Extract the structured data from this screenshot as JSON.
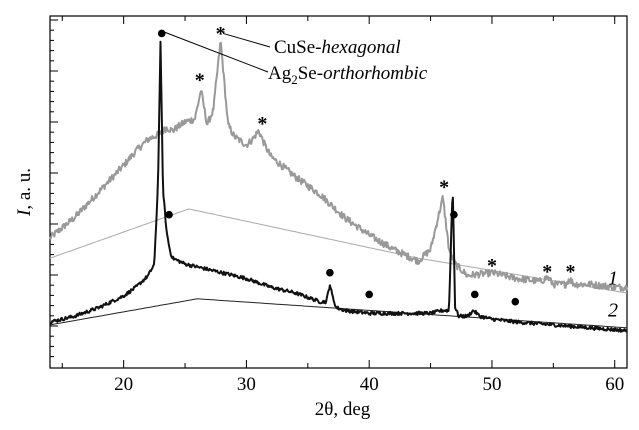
{
  "chart_data": {
    "type": "line",
    "xlabel": "2θ, deg",
    "ylabel": "I, a. u.",
    "xlim": [
      14,
      61
    ],
    "ylim": [
      0,
      1
    ],
    "x_ticks": [
      20,
      30,
      40,
      50,
      60
    ],
    "x_tick_labels": [
      "20",
      "30",
      "40",
      "50",
      "60"
    ],
    "y_ticks_hidden": true,
    "grid": false,
    "colors": {
      "series1": "#999999",
      "series2": "#111111",
      "baseline1": "#aaaaaa",
      "baseline2": "#222222"
    },
    "series": [
      {
        "name": "1",
        "color": "#999999",
        "x": [
          14,
          16,
          18,
          20,
          21,
          22,
          22.5,
          23,
          23.5,
          24,
          25,
          25.8,
          26.3,
          26.8,
          27.3,
          27.9,
          28.5,
          29,
          30,
          30.5,
          31,
          31.5,
          32,
          34,
          36,
          38,
          40,
          42,
          44,
          45,
          45.5,
          46,
          46.5,
          47,
          48,
          50,
          52,
          54,
          54.5,
          55,
          56,
          56.3,
          56.7,
          58,
          60,
          61
        ],
        "y": [
          0.29,
          0.36,
          0.45,
          0.54,
          0.59,
          0.63,
          0.64,
          0.65,
          0.67,
          0.66,
          0.69,
          0.7,
          0.8,
          0.68,
          0.73,
          0.97,
          0.68,
          0.64,
          0.61,
          0.63,
          0.66,
          0.61,
          0.57,
          0.5,
          0.44,
          0.36,
          0.3,
          0.25,
          0.21,
          0.25,
          0.34,
          0.43,
          0.25,
          0.2,
          0.16,
          0.17,
          0.15,
          0.14,
          0.155,
          0.13,
          0.13,
          0.15,
          0.13,
          0.13,
          0.12,
          0.12
        ]
      },
      {
        "name": "2",
        "color": "#111111",
        "x": [
          14,
          16,
          18,
          20,
          21,
          22,
          22.5,
          22.8,
          23,
          23.2,
          23.5,
          23.8,
          24,
          25,
          26,
          28,
          30,
          32,
          34,
          36,
          36.5,
          36.8,
          37,
          37.3,
          38,
          40,
          42,
          44,
          45,
          46,
          46.5,
          46.8,
          47,
          47.3,
          48,
          48.5,
          49,
          50,
          52,
          55,
          58,
          61
        ],
        "y": [
          0.0,
          0.02,
          0.05,
          0.09,
          0.12,
          0.16,
          0.2,
          0.48,
          0.97,
          0.46,
          0.31,
          0.24,
          0.22,
          0.2,
          0.19,
          0.17,
          0.15,
          0.12,
          0.1,
          0.07,
          0.07,
          0.13,
          0.09,
          0.05,
          0.04,
          0.03,
          0.03,
          0.03,
          0.03,
          0.04,
          0.04,
          0.47,
          0.05,
          0.02,
          0.02,
          0.04,
          0.02,
          0.01,
          0.0,
          -0.01,
          -0.02,
          -0.03
        ]
      }
    ],
    "baselines": [
      {
        "x": [
          14,
          25.3,
          44,
          61
        ],
        "y": [
          0.22,
          0.39,
          0.22,
          0.1
        ]
      },
      {
        "x": [
          14,
          26,
          40,
          61
        ],
        "y": [
          -0.01,
          0.08,
          0.04,
          -0.02
        ]
      }
    ],
    "markers": {
      "star": [
        [
          26.2,
          0.84
        ],
        [
          27.9,
          1.0
        ],
        [
          31.3,
          0.69
        ],
        [
          46.1,
          0.47
        ],
        [
          50,
          0.2
        ],
        [
          54.5,
          0.18
        ],
        [
          56.4,
          0.18
        ]
      ],
      "dot": [
        [
          23.1,
          0.995
        ],
        [
          23.7,
          0.37
        ],
        [
          36.8,
          0.17
        ],
        [
          40,
          0.095
        ],
        [
          46.9,
          0.37
        ],
        [
          48.6,
          0.095
        ],
        [
          51.9,
          0.07
        ]
      ]
    },
    "curve_labels": [
      "1",
      "2"
    ],
    "annotations": [
      {
        "prefix": "CuSe-",
        "italic": "hexagonal",
        "sub": ""
      },
      {
        "prefix": "Ag",
        "sub": "2",
        "middle": "Se-",
        "italic": "orthorhombic"
      }
    ]
  }
}
